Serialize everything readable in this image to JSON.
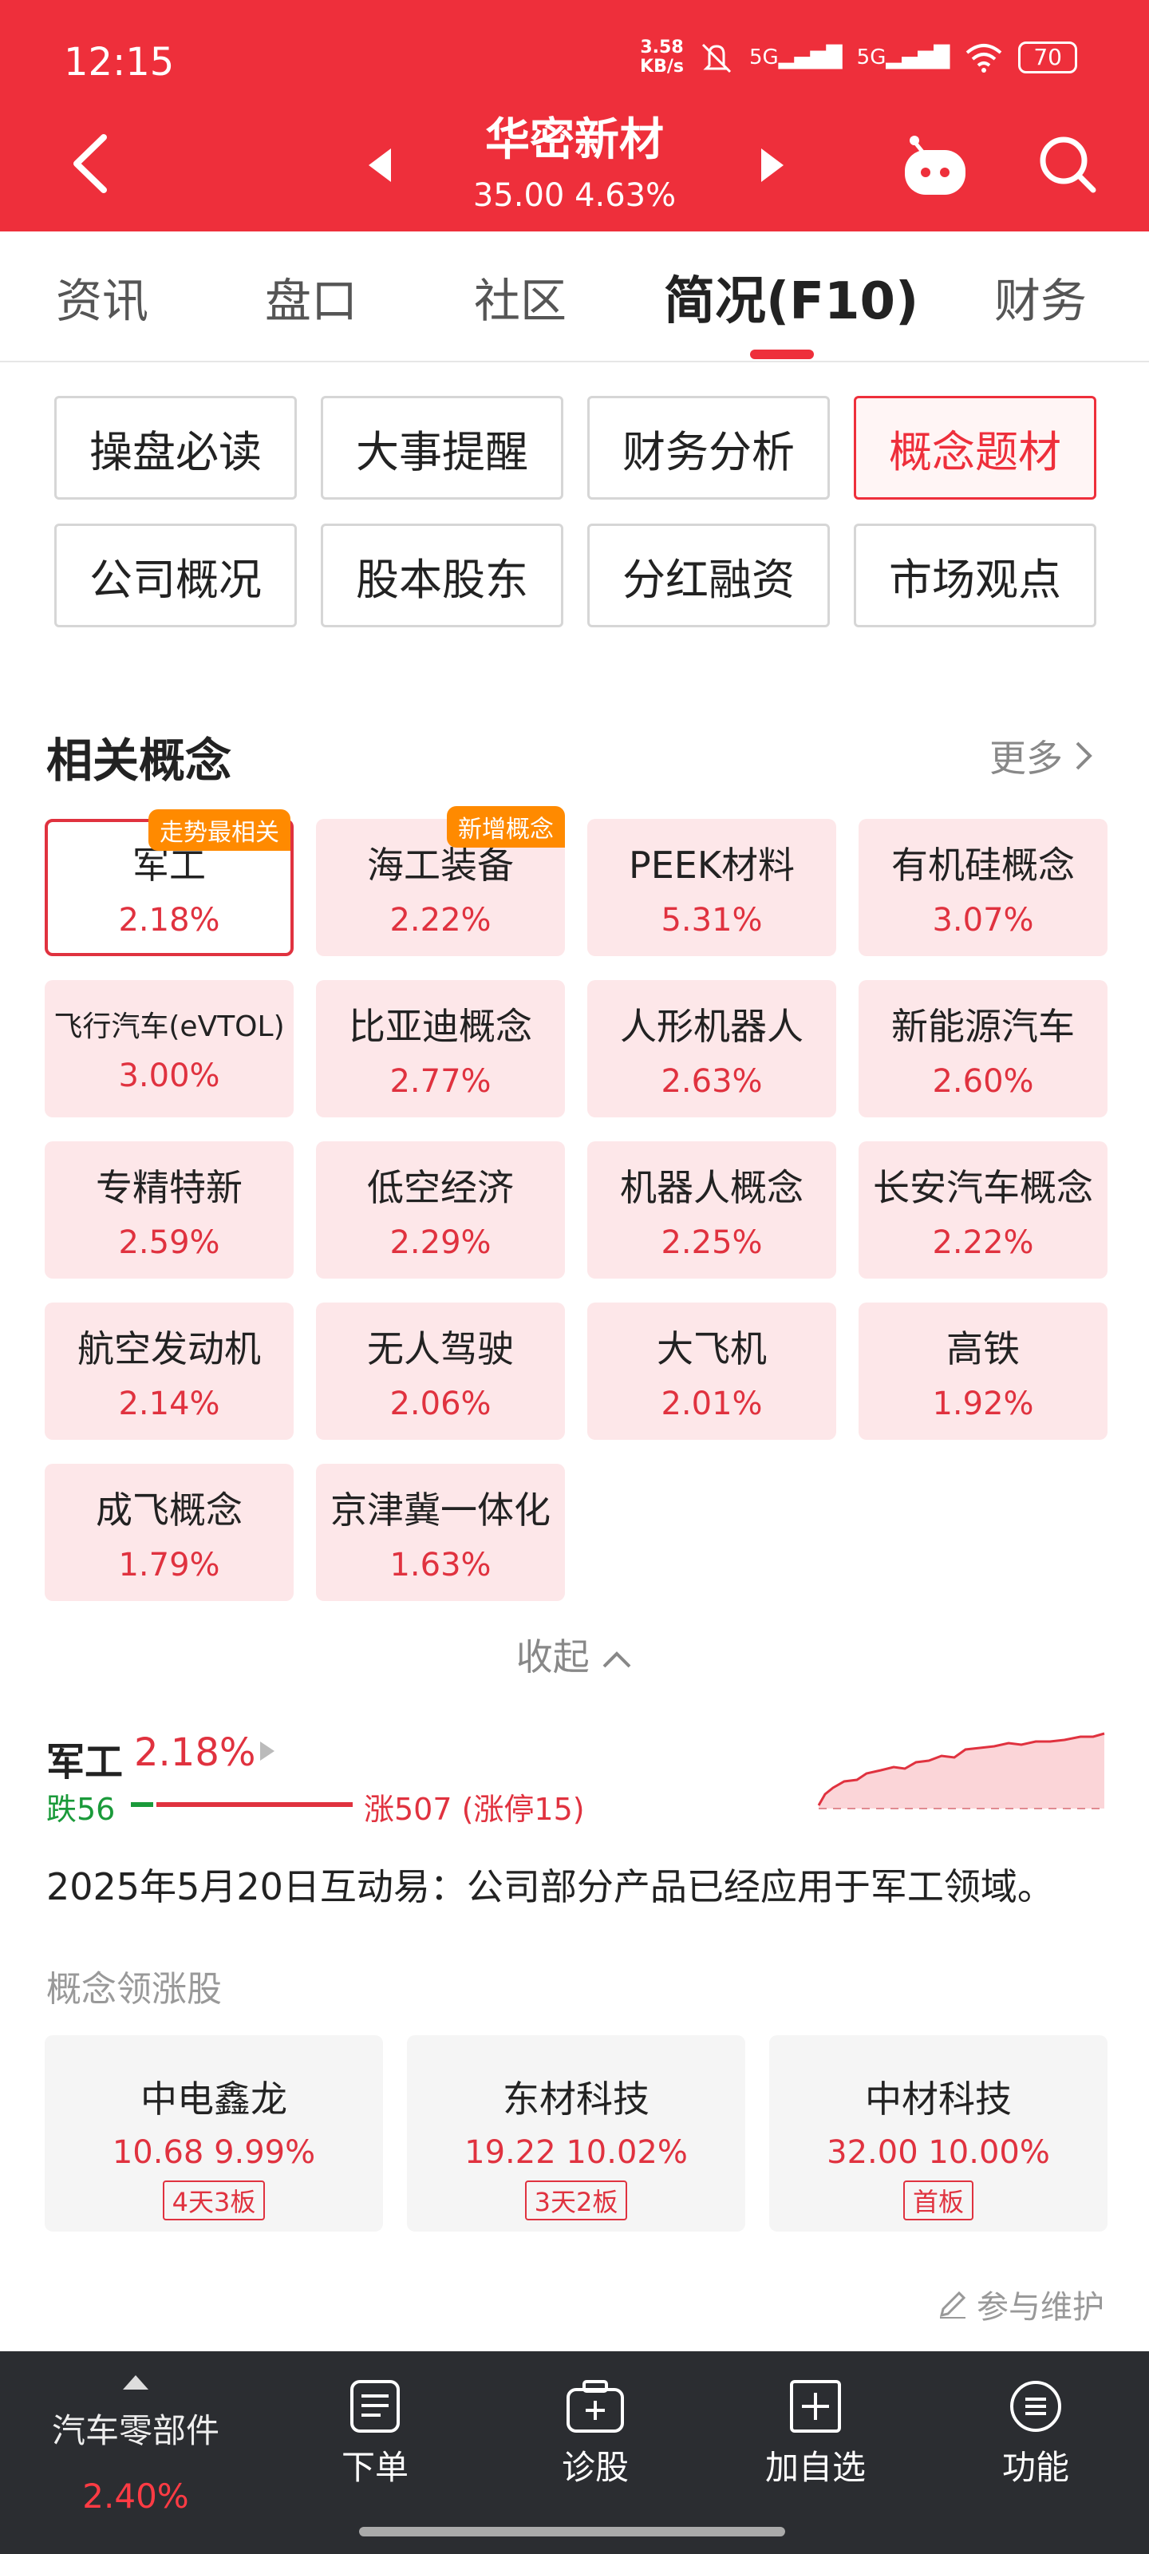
{
  "status_bar": {
    "time": "12:15",
    "net_speed_value": "3.58",
    "net_speed_unit": "KB/s",
    "signal1": "5G",
    "signal2": "5G",
    "battery": "70"
  },
  "header": {
    "stock_name": "华密新材",
    "stock_quote": "35.00 4.63%"
  },
  "tabs": [
    "资讯",
    "盘口",
    "社区",
    "简况(F10)",
    "财务"
  ],
  "active_tab": "简况(F10)",
  "sub_buttons": [
    "操盘必读",
    "大事提醒",
    "财务分析",
    "概念题材",
    "公司概况",
    "股本股东",
    "分红融资",
    "市场观点"
  ],
  "active_sub_button": "概念题材",
  "related": {
    "title": "相关概念",
    "more": "更多",
    "concepts": [
      {
        "name": "军工",
        "pct": "2.18%",
        "badge": "走势最相关"
      },
      {
        "name": "海工装备",
        "pct": "2.22%",
        "badge": "新增概念"
      },
      {
        "name": "PEEK材料",
        "pct": "5.31%"
      },
      {
        "name": "有机硅概念",
        "pct": "3.07%"
      },
      {
        "name": "飞行汽车(eVTOL)",
        "pct": "3.00%"
      },
      {
        "name": "比亚迪概念",
        "pct": "2.77%"
      },
      {
        "name": "人形机器人",
        "pct": "2.63%"
      },
      {
        "name": "新能源汽车",
        "pct": "2.60%"
      },
      {
        "name": "专精特新",
        "pct": "2.59%"
      },
      {
        "name": "低空经济",
        "pct": "2.29%"
      },
      {
        "name": "机器人概念",
        "pct": "2.25%"
      },
      {
        "name": "长安汽车概念",
        "pct": "2.22%"
      },
      {
        "name": "航空发动机",
        "pct": "2.14%"
      },
      {
        "name": "无人驾驶",
        "pct": "2.06%"
      },
      {
        "name": "大飞机",
        "pct": "2.01%"
      },
      {
        "name": "高铁",
        "pct": "1.92%"
      },
      {
        "name": "成飞概念",
        "pct": "1.79%"
      },
      {
        "name": "京津冀一体化",
        "pct": "1.63%"
      }
    ],
    "collapse_label": "收起"
  },
  "detail": {
    "name": "军工",
    "pct": "2.18%",
    "fall_text": "跌56",
    "rise_text": "涨507 (涨停15)",
    "falls": 56,
    "rises": 507,
    "description": "2025年5月20日互动易：公司部分产品已经应用于军工领域。"
  },
  "leaders": {
    "title": "概念领涨股",
    "stocks": [
      {
        "name": "中电鑫龙",
        "quote": "10.68 9.99%",
        "tag": "4天3板"
      },
      {
        "name": "东材科技",
        "quote": "19.22 10.02%",
        "tag": "3天2板"
      },
      {
        "name": "中材科技",
        "quote": "32.00 10.00%",
        "tag": "首板"
      }
    ]
  },
  "maintain_label": "参与维护",
  "bottom_bar": {
    "sector_name": "汽车零部件",
    "sector_pct": "2.40%",
    "items": [
      {
        "label": "下单",
        "icon": "order-icon"
      },
      {
        "label": "诊股",
        "icon": "diagnose-icon"
      },
      {
        "label": "加自选",
        "icon": "add-watchlist-icon"
      },
      {
        "label": "功能",
        "icon": "menu-icon"
      }
    ]
  },
  "colors": {
    "brand_red": "#ee2f3b",
    "rise": "#e0323f",
    "fall": "#1a9a3a",
    "badge_orange": "#ff8a00"
  }
}
